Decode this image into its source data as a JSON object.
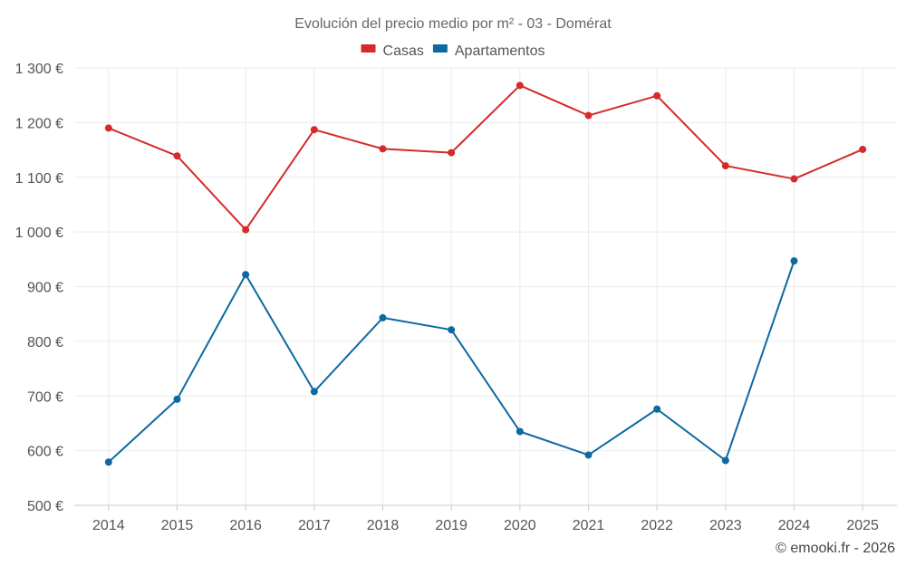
{
  "chart_data": {
    "type": "line",
    "title": "Evolución del precio medio por m² - 03 - Domérat",
    "categories": [
      "2014",
      "2015",
      "2016",
      "2017",
      "2018",
      "2019",
      "2020",
      "2021",
      "2022",
      "2023",
      "2024",
      "2025"
    ],
    "series": [
      {
        "name": "Casas",
        "color": "#d42a2a",
        "values": [
          1190,
          1139,
          1004,
          1187,
          1152,
          1145,
          1268,
          1213,
          1249,
          1121,
          1097,
          1151
        ]
      },
      {
        "name": "Apartamentos",
        "color": "#0d6aa1",
        "values": [
          579,
          694,
          922,
          708,
          843,
          821,
          635,
          592,
          676,
          582,
          947,
          null
        ]
      }
    ],
    "ylim": [
      500,
      1300
    ],
    "yticks": [
      500,
      600,
      700,
      800,
      900,
      1000,
      1100,
      1200,
      1300
    ],
    "ytick_labels": [
      "500 €",
      "600 €",
      "700 €",
      "800 €",
      "900 €",
      "1 000 €",
      "1 100 €",
      "1 200 €",
      "1 300 €"
    ],
    "xlabel": "",
    "ylabel": "",
    "grid": true,
    "legend_position": "top-center"
  },
  "credit": "© emooki.fr - 2026"
}
